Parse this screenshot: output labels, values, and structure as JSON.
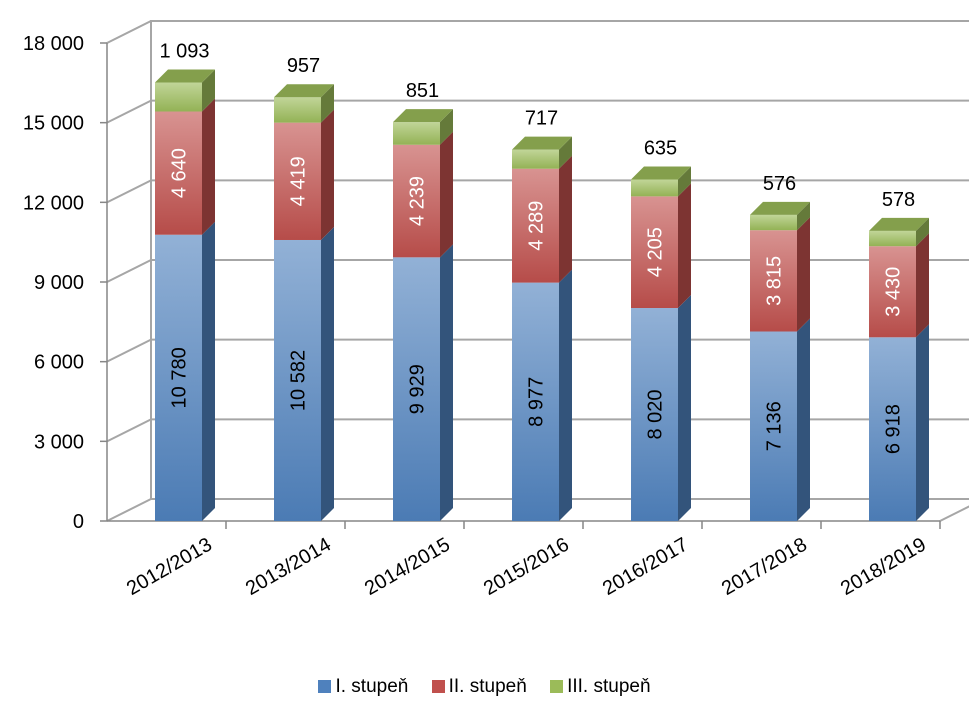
{
  "chart_data": {
    "type": "bar",
    "stacked": true,
    "three_d": true,
    "categories": [
      "2012/2013",
      "2013/2014",
      "2014/2015",
      "2015/2016",
      "2016/2017",
      "2017/2018",
      "2018/2019"
    ],
    "series": [
      {
        "name": "I. stupeň",
        "values": [
          10780,
          10582,
          9929,
          8977,
          8020,
          7136,
          6918
        ],
        "labels": [
          "10 780",
          "10 582",
          "9 929",
          "8 977",
          "8 020",
          "7 136",
          "6 918"
        ],
        "color": "#4f81bd"
      },
      {
        "name": "II. stupeň",
        "values": [
          4640,
          4419,
          4239,
          4289,
          4205,
          3815,
          3430
        ],
        "labels": [
          "4 640",
          "4 419",
          "4 239",
          "4 289",
          "4 205",
          "3 815",
          "3 430"
        ],
        "color": "#c0504d"
      },
      {
        "name": "III. stupeň",
        "values": [
          1093,
          957,
          851,
          717,
          635,
          576,
          578
        ],
        "labels": [
          "1 093",
          "957",
          "851",
          "717",
          "635",
          "576",
          "578"
        ],
        "color": "#9bbb59"
      }
    ],
    "y_ticks": [
      "0",
      "3 000",
      "6 000",
      "9 000",
      "12 000",
      "15 000",
      "18 000"
    ],
    "ylim": [
      0,
      18000
    ],
    "grid": true,
    "legend_position": "bottom",
    "title": "",
    "xlabel": "",
    "ylabel": ""
  }
}
